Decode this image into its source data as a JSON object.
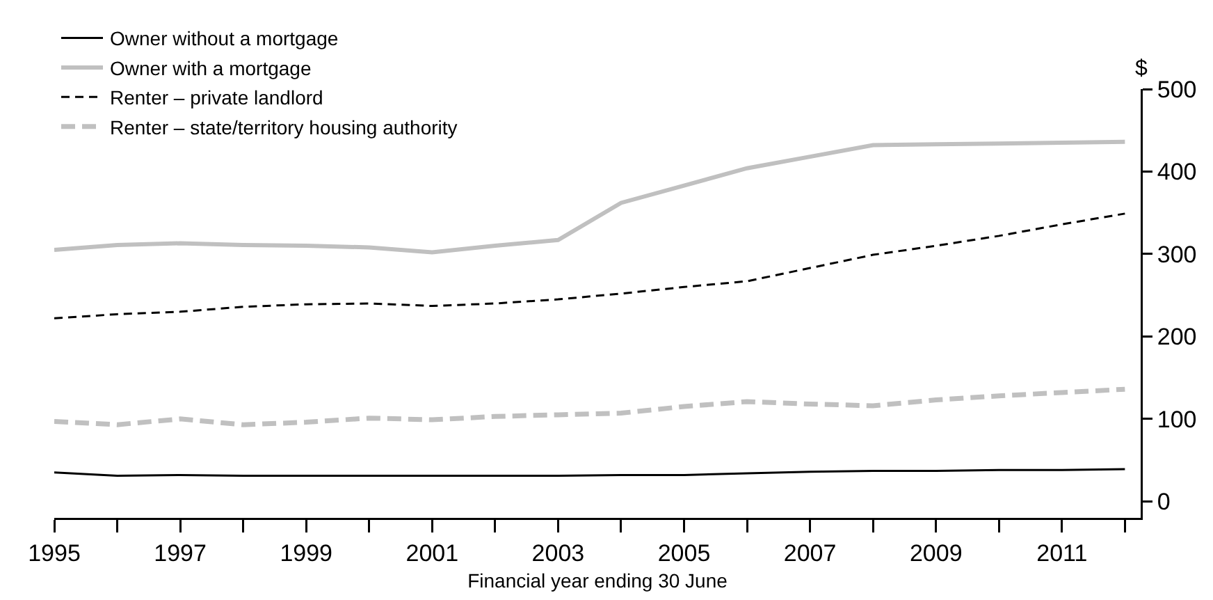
{
  "chart_data": {
    "type": "line",
    "xlabel": "Financial year ending 30 June",
    "ylabel": "$",
    "x": [
      1995,
      1996,
      1997,
      1998,
      1999,
      2000,
      2001,
      2002,
      2003,
      2004,
      2005,
      2006,
      2007,
      2008,
      2009,
      2010,
      2011,
      2012
    ],
    "series": [
      {
        "name": "Owner without a mortgage",
        "color": "#000000",
        "line_style": "solid",
        "values": [
          35,
          31,
          32,
          31,
          31,
          31,
          31,
          31,
          31,
          32,
          32,
          34,
          36,
          37,
          37,
          38,
          38,
          39
        ]
      },
      {
        "name": "Owner with a mortgage",
        "color": "#c0c0c0",
        "line_style": "solid",
        "values": [
          305,
          311,
          313,
          311,
          310,
          308,
          302,
          310,
          317,
          362,
          383,
          404,
          418,
          432,
          433,
          434,
          435,
          436
        ]
      },
      {
        "name": "Renter – private landlord",
        "color": "#000000",
        "line_style": "dashed",
        "values": [
          222,
          227,
          230,
          236,
          239,
          240,
          237,
          240,
          245,
          252,
          260,
          267,
          283,
          299,
          310,
          322,
          336,
          349
        ]
      },
      {
        "name": "Renter – state/territory housing authority",
        "color": "#c0c0c0",
        "line_style": "dashed",
        "values": [
          97,
          93,
          100,
          93,
          96,
          101,
          99,
          103,
          105,
          107,
          115,
          121,
          118,
          116,
          123,
          128,
          132,
          136
        ]
      }
    ],
    "xlim": [
      1995,
      2012.25
    ],
    "xticks": [
      1995,
      {
        "value": 1996,
        "label": null
      },
      1997,
      {
        "value": 1998,
        "label": null
      },
      1999,
      {
        "value": 2000,
        "label": null
      },
      2001,
      {
        "value": 2002,
        "label": null
      },
      2003,
      {
        "value": 2004,
        "label": null
      },
      2005,
      {
        "value": 2006,
        "label": null
      },
      2007,
      {
        "value": 2008,
        "label": null
      },
      2009,
      {
        "value": 2010,
        "label": null
      },
      2011,
      {
        "value": 2012,
        "label": null
      }
    ],
    "ylim": [
      -20,
      500
    ],
    "yticks": [
      0,
      100,
      200,
      300,
      400,
      500
    ],
    "grid": false,
    "legend": "top left",
    "marker": "none"
  }
}
